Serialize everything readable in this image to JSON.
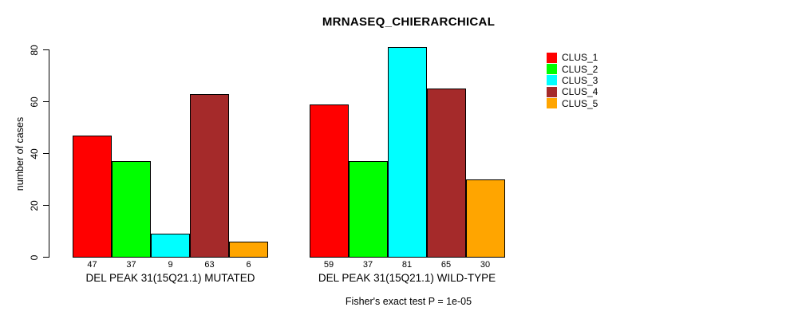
{
  "chart_data": {
    "type": "bar",
    "title": "MRNASEQ_CHIERARCHICAL",
    "ylabel": "number of cases",
    "ylim": [
      0,
      80
    ],
    "yticks": [
      0,
      20,
      40,
      60,
      80
    ],
    "grid": false,
    "legend_position": "top-right",
    "bar_value_labels": true,
    "categories": [
      "DEL PEAK 31(15Q21.1) MUTATED",
      "DEL PEAK 31(15Q21.1) WILD-TYPE"
    ],
    "series": [
      {
        "name": "CLUS_1",
        "color": "#FF0000",
        "values": [
          47,
          59
        ]
      },
      {
        "name": "CLUS_2",
        "color": "#00FF00",
        "values": [
          37,
          37
        ]
      },
      {
        "name": "CLUS_3",
        "color": "#00FFFF",
        "values": [
          9,
          81
        ]
      },
      {
        "name": "CLUS_4",
        "color": "#A52A2A",
        "values": [
          63,
          65
        ]
      },
      {
        "name": "CLUS_5",
        "color": "#FFA500",
        "values": [
          6,
          30
        ]
      }
    ],
    "footnote": "Fisher's exact test P = 1e-05"
  }
}
